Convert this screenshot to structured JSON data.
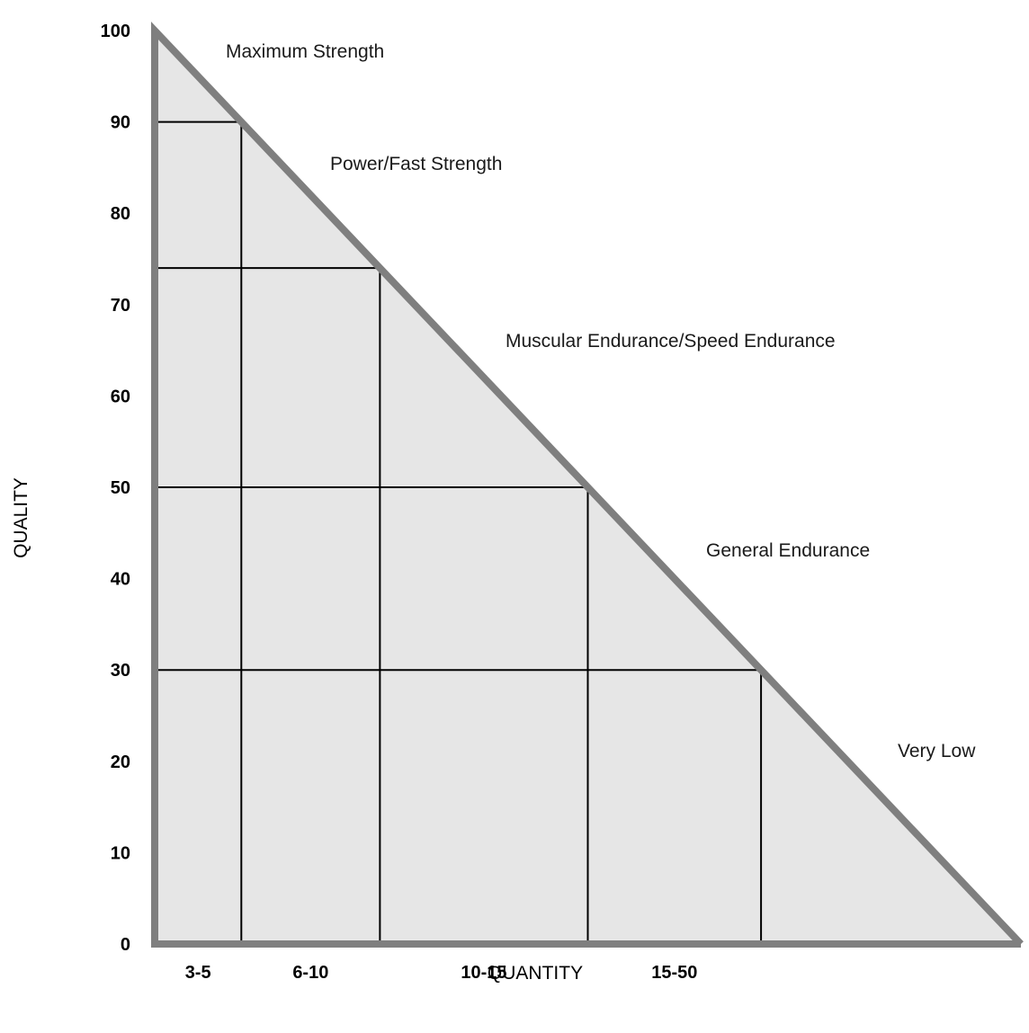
{
  "chart_data": {
    "type": "area",
    "title": "",
    "xlabel": "QUANTITY",
    "ylabel": "QUALITY",
    "ylim": [
      0,
      100
    ],
    "y_ticks": [
      "0",
      "10",
      "20",
      "30",
      "40",
      "50",
      "60",
      "70",
      "80",
      "90",
      "100"
    ],
    "x_categories": [
      "3-5",
      "6-10",
      "10-15",
      "15-50"
    ],
    "grid_levels": [
      90,
      74,
      50,
      30
    ],
    "zones": [
      {
        "label": "Maximum Strength",
        "quality_range": [
          90,
          100
        ]
      },
      {
        "label": "Power/Fast Strength",
        "quality_range": [
          74,
          90
        ]
      },
      {
        "label": "Muscular Endurance/Speed Endurance",
        "quality_range": [
          50,
          74
        ]
      },
      {
        "label": "General Endurance",
        "quality_range": [
          30,
          50
        ]
      },
      {
        "label": "Very Low",
        "quality_range": [
          0,
          30
        ]
      }
    ],
    "colors": {
      "fill": "#e6e6e6",
      "outline": "#7f7f7f",
      "grid": "#000000"
    }
  }
}
